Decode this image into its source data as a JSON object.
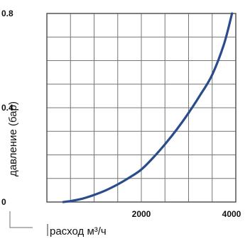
{
  "chart_data": {
    "type": "line",
    "title": "",
    "xlabel": "расход м³/ч",
    "ylabel": "давление (бар)",
    "xlim": [
      0,
      4000
    ],
    "ylim": [
      0,
      0.8
    ],
    "x_tick_labels": [
      {
        "value": 2000,
        "label": "2000"
      },
      {
        "value": 4000,
        "label": "4000"
      }
    ],
    "y_tick_labels": [
      {
        "value": 0,
        "label": "0"
      },
      {
        "value": 0.4,
        "label": "0.4"
      },
      {
        "value": 0.8,
        "label": "0.8"
      }
    ],
    "grid": true,
    "x_grid_step": 500,
    "y_grid_step": 0.1,
    "line_color": "#2b4c8c",
    "grid_color": "#777777",
    "series": [
      {
        "x": [
          350,
          500,
          750,
          1000,
          1250,
          1500,
          1750,
          2000,
          2250,
          2500,
          2750,
          3000,
          3250,
          3500,
          3750,
          3920
        ],
        "y": [
          0.0,
          0.004,
          0.014,
          0.03,
          0.05,
          0.075,
          0.104,
          0.138,
          0.188,
          0.245,
          0.308,
          0.378,
          0.455,
          0.54,
          0.67,
          0.8
        ]
      }
    ]
  }
}
